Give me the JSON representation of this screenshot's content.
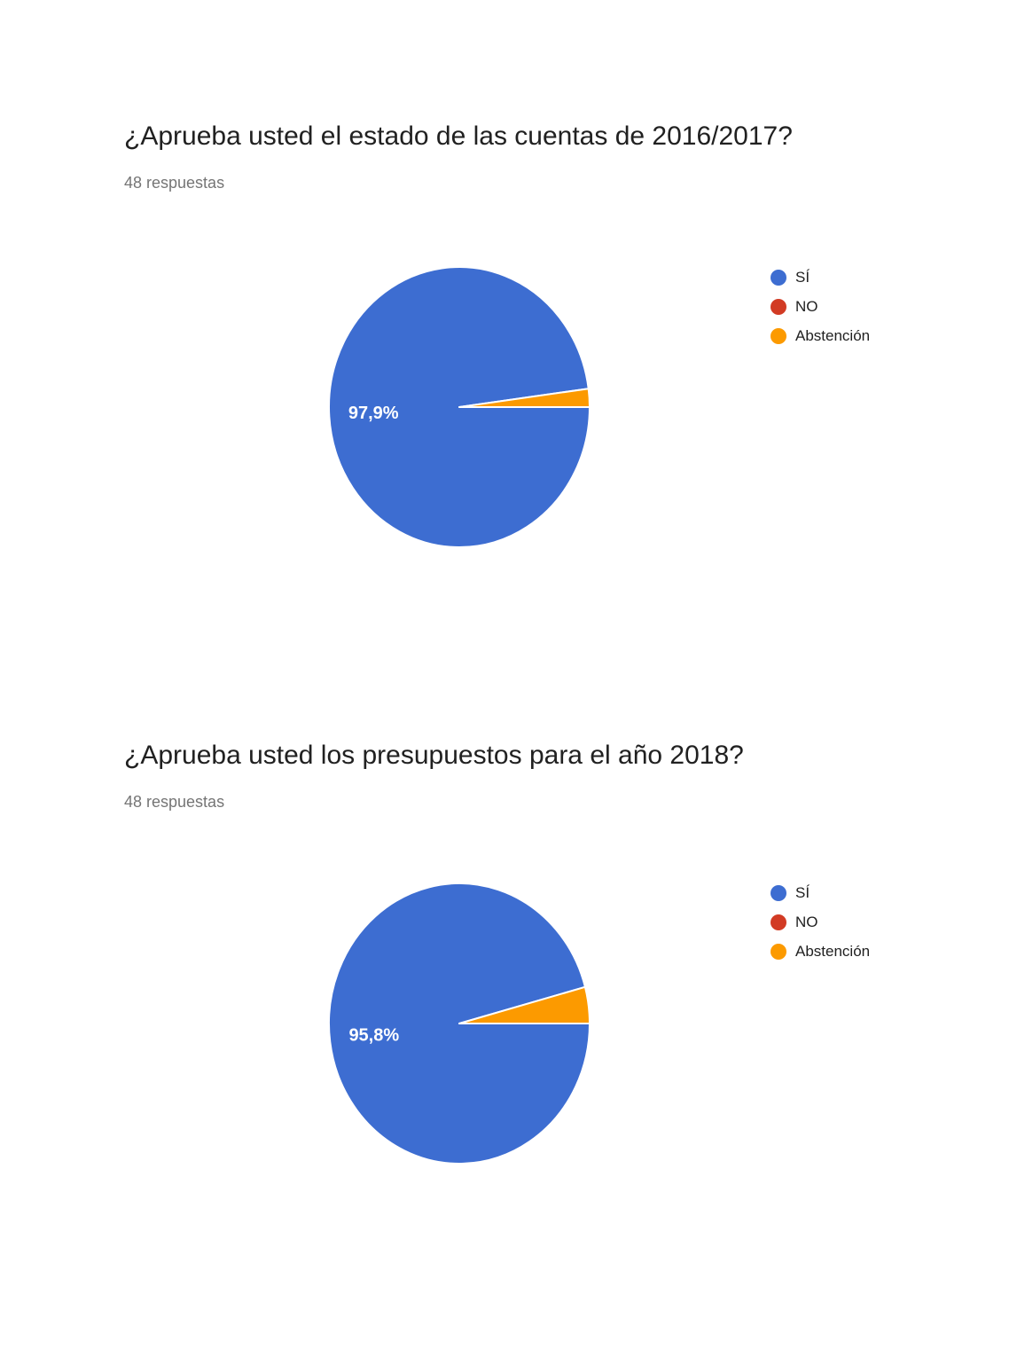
{
  "page": {
    "background": "#ffffff"
  },
  "chart_data": [
    {
      "type": "pie",
      "title": "¿Aprueba usted el estado de las cuentas de 2016/2017?",
      "subtitle": "48 respuestas",
      "legend_position": "right",
      "start_angle_deg": 0,
      "direction": "clockwise",
      "label_text_color": "#ffffff",
      "slices": [
        {
          "label": "SÍ",
          "percent": 97.9,
          "display_label": "97,9%",
          "color": "#3d6dd1"
        },
        {
          "label": "NO",
          "percent": 0,
          "display_label": "",
          "color": "#d23b24"
        },
        {
          "label": "Abstención",
          "percent": 2.1,
          "display_label": "",
          "color": "#fc9a00"
        }
      ]
    },
    {
      "type": "pie",
      "title": "¿Aprueba usted los presupuestos para el año 2018?",
      "subtitle": "48 respuestas",
      "legend_position": "right",
      "start_angle_deg": 0,
      "direction": "clockwise",
      "label_text_color": "#ffffff",
      "slices": [
        {
          "label": "SÍ",
          "percent": 95.8,
          "display_label": "95,8%",
          "color": "#3d6dd1"
        },
        {
          "label": "NO",
          "percent": 0,
          "display_label": "",
          "color": "#d23b24"
        },
        {
          "label": "Abstención",
          "percent": 4.2,
          "display_label": "",
          "color": "#fc9a00"
        }
      ]
    }
  ]
}
